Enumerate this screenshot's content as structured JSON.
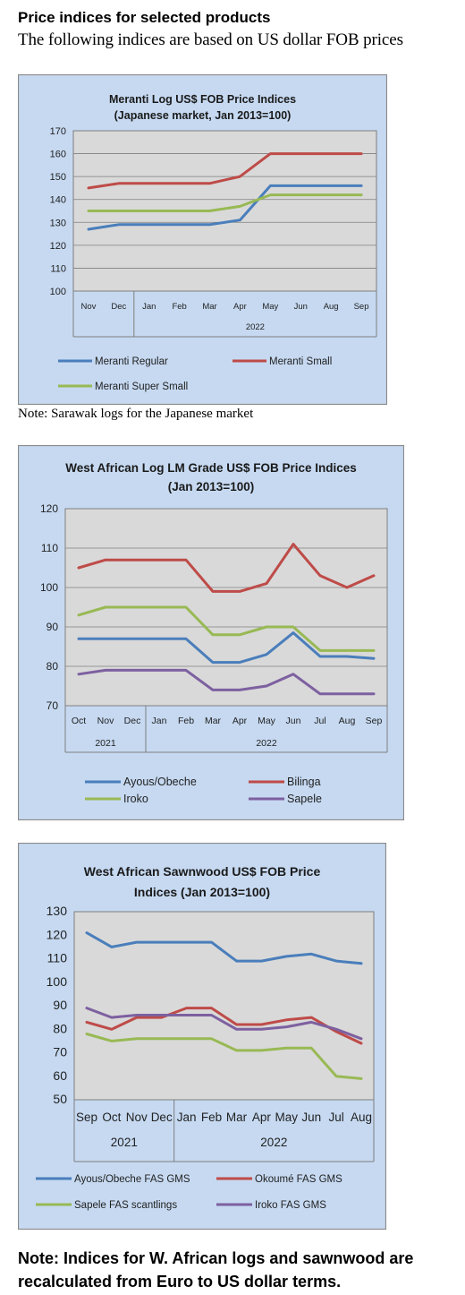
{
  "header": {
    "title": "Price indices for selected products",
    "subtitle": "The following indices are based on US dollar FOB prices"
  },
  "notes": {
    "chart1": "Note: Sarawak logs for the Japanese market",
    "bottom": "Note: Indices for W. African logs and sawnwood are recalculated from Euro to US dollar terms."
  },
  "chart_data": [
    {
      "type": "line",
      "title": "Meranti Log US$ FOB Price Indices",
      "subtitle": "(Japanese market, Jan 2013=100)",
      "categories": [
        "Nov",
        "Dec",
        "Jan",
        "Feb",
        "Mar",
        "Apr",
        "May",
        "Jun",
        "Aug",
        "Sep"
      ],
      "year_groups": [
        {
          "label": "",
          "span": 2
        },
        {
          "label": "2022",
          "span": 8
        }
      ],
      "ylim": [
        100,
        170
      ],
      "yticks": [
        100,
        110,
        120,
        130,
        140,
        150,
        160,
        170
      ],
      "grid": true,
      "legend_position": "bottom",
      "series": [
        {
          "name": "Meranti Regular",
          "color": "#4a7ebb",
          "values": [
            127,
            129,
            129,
            129,
            129,
            131,
            146,
            146,
            146,
            146
          ]
        },
        {
          "name": "Meranti Small",
          "color": "#be4b48",
          "values": [
            145,
            147,
            147,
            147,
            147,
            150,
            160,
            160,
            160,
            160
          ]
        },
        {
          "name": "Meranti Super Small",
          "color": "#98b954",
          "values": [
            135,
            135,
            135,
            135,
            135,
            137,
            142,
            142,
            142,
            142
          ]
        }
      ]
    },
    {
      "type": "line",
      "title": "West African Log LM Grade US$ FOB Price Indices",
      "subtitle": "(Jan 2013=100)",
      "categories": [
        "Oct",
        "Nov",
        "Dec",
        "Jan",
        "Feb",
        "Mar",
        "Apr",
        "May",
        "Jun",
        "Jul",
        "Aug",
        "Sep"
      ],
      "year_groups": [
        {
          "label": "2021",
          "span": 3
        },
        {
          "label": "2022",
          "span": 9
        }
      ],
      "ylim": [
        70,
        120
      ],
      "yticks": [
        70,
        80,
        90,
        100,
        110,
        120
      ],
      "grid": true,
      "legend_position": "bottom",
      "series": [
        {
          "name": "Ayous/Obeche",
          "color": "#4a7ebb",
          "values": [
            87,
            87,
            87,
            87,
            87,
            81,
            81,
            83,
            88.5,
            82.5,
            82.5,
            82
          ]
        },
        {
          "name": "Bilinga",
          "color": "#be4b48",
          "values": [
            105,
            107,
            107,
            107,
            107,
            99,
            99,
            101,
            111,
            103,
            100,
            103
          ]
        },
        {
          "name": "Iroko",
          "color": "#98b954",
          "values": [
            93,
            95,
            95,
            95,
            95,
            88,
            88,
            90,
            90,
            84,
            84,
            84
          ]
        },
        {
          "name": "Sapele",
          "color": "#7d60a0",
          "values": [
            78,
            79,
            79,
            79,
            79,
            74,
            74,
            75,
            78,
            73,
            73,
            73
          ]
        }
      ]
    },
    {
      "type": "line",
      "title": "West African Sawnwood US$ FOB Price",
      "subtitle": "Indices (Jan 2013=100)",
      "categories": [
        "Sep",
        "Oct",
        "Nov",
        "Dec",
        "Jan",
        "Feb",
        "Mar",
        "Apr",
        "May",
        "Jun",
        "Jul",
        "Aug"
      ],
      "year_groups": [
        {
          "label": "2021",
          "span": 4
        },
        {
          "label": "2022",
          "span": 8
        }
      ],
      "ylim": [
        50,
        130
      ],
      "yticks": [
        50,
        60,
        70,
        80,
        90,
        100,
        110,
        120,
        130
      ],
      "grid": false,
      "legend_position": "bottom",
      "series": [
        {
          "name": "Ayous/Obeche FAS GMS",
          "color": "#4a7ebb",
          "values": [
            121,
            115,
            117,
            117,
            117,
            117,
            109,
            109,
            111,
            112,
            109,
            108
          ]
        },
        {
          "name": "Okoumé FAS GMS",
          "color": "#be4b48",
          "values": [
            83,
            80,
            85,
            85,
            89,
            89,
            82,
            82,
            84,
            85,
            79,
            74
          ]
        },
        {
          "name": "Sapele FAS scantlings",
          "color": "#98b954",
          "values": [
            78,
            75,
            76,
            76,
            76,
            76,
            71,
            71,
            72,
            72,
            60,
            59
          ]
        },
        {
          "name": "Iroko FAS GMS",
          "color": "#7d60a0",
          "values": [
            89,
            85,
            86,
            86,
            86,
            86,
            80,
            80,
            81,
            83,
            80,
            76
          ]
        }
      ]
    }
  ]
}
